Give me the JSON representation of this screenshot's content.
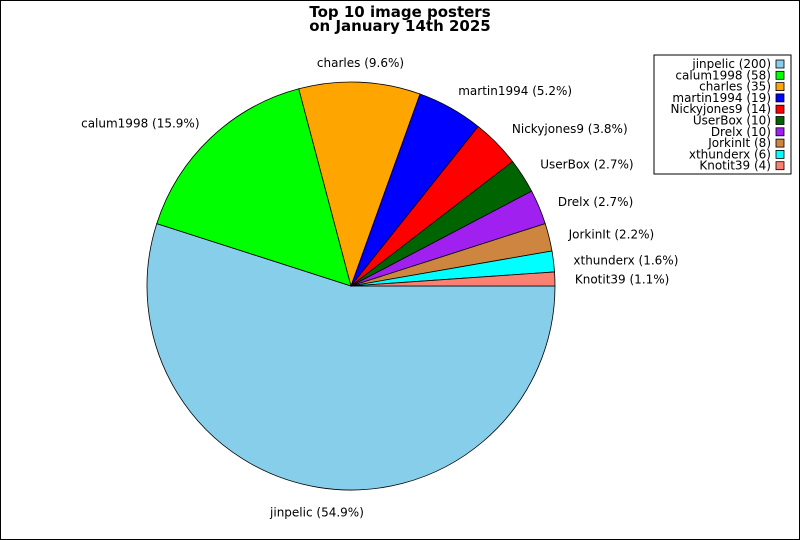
{
  "chart_data": {
    "type": "pie",
    "title_lines": [
      "Top 10 image posters",
      "on January 14th 2025"
    ],
    "legend_position": "top-right",
    "slices": [
      {
        "name": "jinpelic",
        "value": 200,
        "percent_label": "jinpelic (54.9%)",
        "legend_label": "jinpelic (200)",
        "color": "#87ceeb"
      },
      {
        "name": "calum1998",
        "value": 58,
        "percent_label": "calum1998 (15.9%)",
        "legend_label": "calum1998 (58)",
        "color": "#00ff00"
      },
      {
        "name": "charles",
        "value": 35,
        "percent_label": "charles (9.6%)",
        "legend_label": "charles (35)",
        "color": "#ffa500"
      },
      {
        "name": "martin1994",
        "value": 19,
        "percent_label": "martin1994 (5.2%)",
        "legend_label": "martin1994 (19)",
        "color": "#0000ff"
      },
      {
        "name": "Nickyjones9",
        "value": 14,
        "percent_label": "Nickyjones9 (3.8%)",
        "legend_label": "Nickyjones9 (14)",
        "color": "#ff0000"
      },
      {
        "name": "UserBox",
        "value": 10,
        "percent_label": "UserBox (2.7%)",
        "legend_label": "UserBox (10)",
        "color": "#006400"
      },
      {
        "name": "Drelx",
        "value": 10,
        "percent_label": "Drelx (2.7%)",
        "legend_label": "Drelx (10)",
        "color": "#a020f0"
      },
      {
        "name": "JorkinIt",
        "value": 8,
        "percent_label": "JorkinIt (2.2%)",
        "legend_label": "JorkinIt (8)",
        "color": "#cd853f"
      },
      {
        "name": "xthunderx",
        "value": 6,
        "percent_label": "xthunderx (1.6%)",
        "legend_label": "xthunderx (6)",
        "color": "#00ffff"
      },
      {
        "name": "Knotit39",
        "value": 4,
        "percent_label": "Knotit39 (1.1%)",
        "legend_label": "Knotit39 (4)",
        "color": "#fa8072"
      }
    ]
  }
}
